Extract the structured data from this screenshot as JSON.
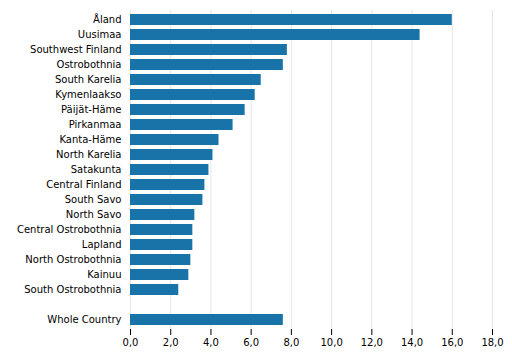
{
  "chart_data": {
    "type": "bar",
    "orientation": "horizontal",
    "categories": [
      "Åland",
      "Uusimaa",
      "Southwest Finland",
      "Ostrobothnia",
      "South Karelia",
      "Kymenlaakso",
      "Päijät-Häme",
      "Pirkanmaa",
      "Kanta-Häme",
      "North Karelia",
      "Satakunta",
      "Central Finland",
      "South Savo",
      "North Savo",
      "Central Ostrobothnia",
      "Lapland",
      "North Ostrobothnia",
      "Kainuu",
      "South Ostrobothnia",
      null,
      "Whole Country"
    ],
    "values": [
      16.0,
      14.4,
      7.8,
      7.6,
      6.5,
      6.2,
      5.7,
      5.1,
      4.4,
      4.1,
      3.9,
      3.7,
      3.6,
      3.2,
      3.1,
      3.1,
      3.0,
      2.9,
      2.4,
      0,
      7.6
    ],
    "color": "#1874a8",
    "xlim": [
      0,
      18
    ],
    "xticks": [
      {
        "value": 0,
        "label": "0,0"
      },
      {
        "value": 2,
        "label": "2,0"
      },
      {
        "value": 4,
        "label": "4,0"
      },
      {
        "value": 6,
        "label": "6,0"
      },
      {
        "value": 8,
        "label": "8,0"
      },
      {
        "value": 10,
        "label": "10,0"
      },
      {
        "value": 12,
        "label": "12,0"
      },
      {
        "value": 14,
        "label": "14,0"
      },
      {
        "value": 16,
        "label": "16,0"
      },
      {
        "value": 18,
        "label": "18,0"
      }
    ],
    "grid": true
  }
}
